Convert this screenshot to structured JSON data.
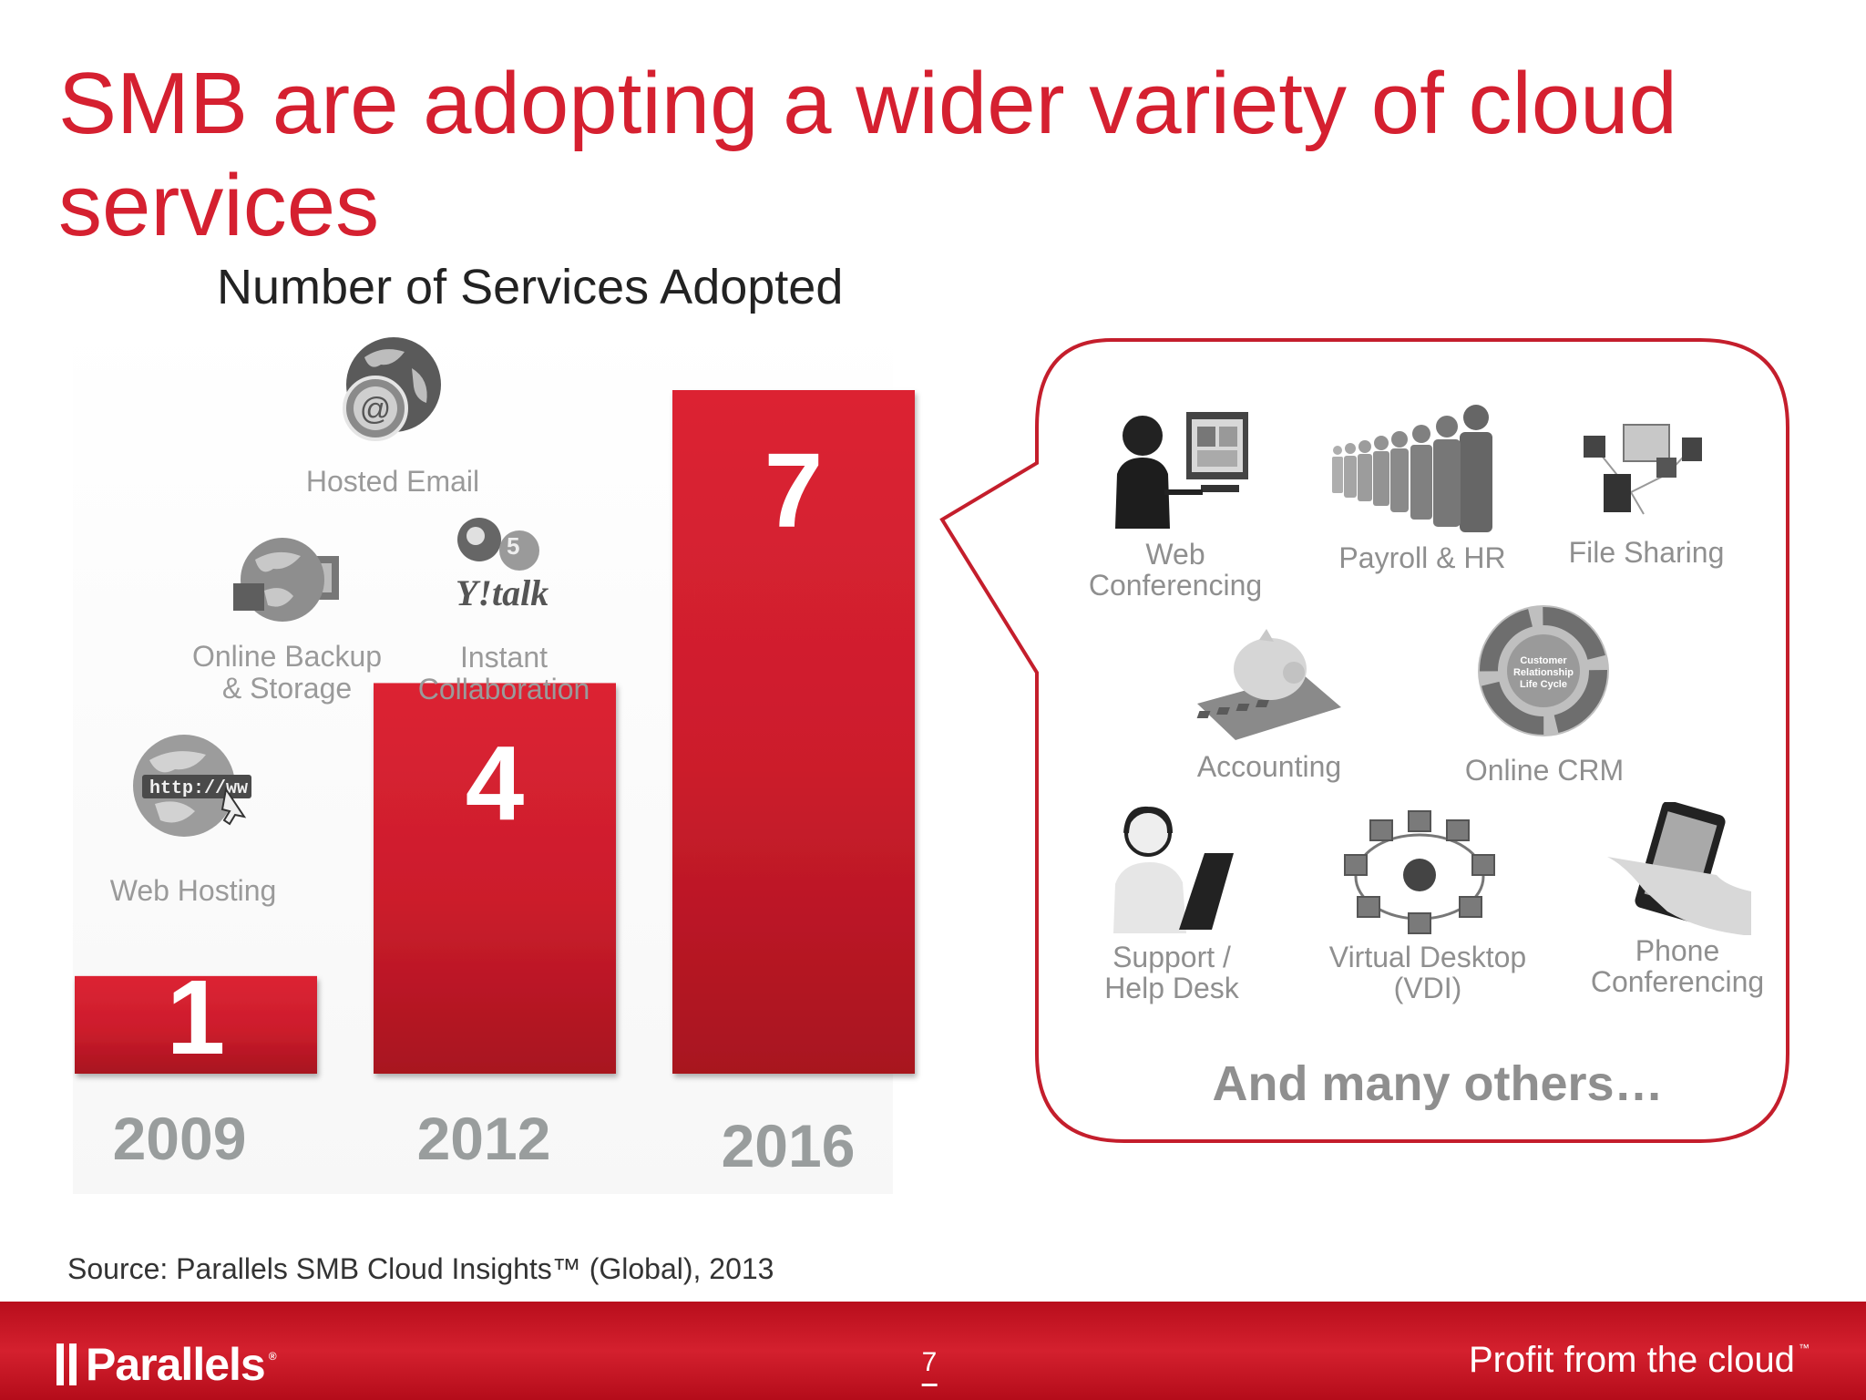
{
  "slide": {
    "title": "SMB are adopting a wider variety of cloud services",
    "source": "Source:  Parallels SMB Cloud Insights™ (Global), 2013",
    "page_number": "7",
    "brand": "Parallels",
    "brand_mark": "®",
    "tagline": "Profit from the cloud",
    "tagline_mark": "™",
    "accent_color": "#d52030"
  },
  "chart_data": {
    "type": "bar",
    "title": "Number of Services Adopted",
    "categories": [
      "2009",
      "2012",
      "2016"
    ],
    "values": [
      1,
      4,
      7
    ],
    "ylim": [
      0,
      7
    ],
    "grid": false,
    "legend": "none",
    "bar_color": "#d52030"
  },
  "adopted_services": [
    {
      "label": "Hosted Email",
      "icon": "globe-email-icon"
    },
    {
      "label": "Online Backup\n& Storage",
      "icon": "globe-backup-icon"
    },
    {
      "label": "Instant\nCollaboration",
      "icon": "chat-icons-icon"
    },
    {
      "label": "Web Hosting",
      "icon": "globe-http-icon"
    }
  ],
  "bubble": {
    "items": [
      {
        "label": "Web\nConferencing",
        "icon": "web-conferencing-icon"
      },
      {
        "label": "Payroll & HR",
        "icon": "people-line-icon"
      },
      {
        "label": "File Sharing",
        "icon": "network-computers-icon"
      },
      {
        "label": "Accounting",
        "icon": "piggy-calculator-icon"
      },
      {
        "label": "Online CRM",
        "icon": "crm-cycle-icon"
      },
      {
        "label": "Support /\nHelp Desk",
        "icon": "headset-laptop-icon"
      },
      {
        "label": "Virtual Desktop\n(VDI)",
        "icon": "server-ring-icon"
      },
      {
        "label": "Phone\nConferencing",
        "icon": "smartphone-hand-icon"
      }
    ],
    "footer": "And many others…"
  }
}
